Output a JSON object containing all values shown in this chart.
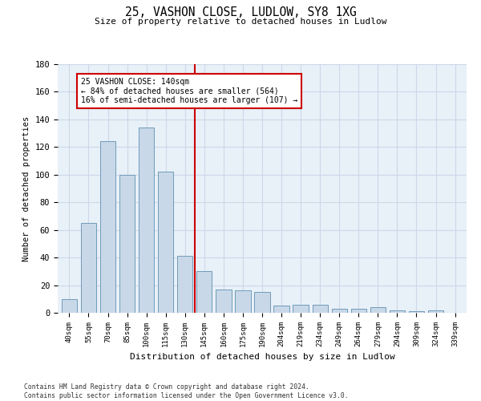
{
  "title1": "25, VASHON CLOSE, LUDLOW, SY8 1XG",
  "title2": "Size of property relative to detached houses in Ludlow",
  "xlabel": "Distribution of detached houses by size in Ludlow",
  "ylabel": "Number of detached properties",
  "categories": [
    "40sqm",
    "55sqm",
    "70sqm",
    "85sqm",
    "100sqm",
    "115sqm",
    "130sqm",
    "145sqm",
    "160sqm",
    "175sqm",
    "190sqm",
    "204sqm",
    "219sqm",
    "234sqm",
    "249sqm",
    "264sqm",
    "279sqm",
    "294sqm",
    "309sqm",
    "324sqm",
    "339sqm"
  ],
  "values": [
    10,
    65,
    124,
    100,
    134,
    102,
    41,
    30,
    17,
    16,
    15,
    5,
    6,
    6,
    3,
    3,
    4,
    2,
    1,
    2,
    0
  ],
  "bar_color": "#c8d8e8",
  "bar_edge_color": "#6090b0",
  "reference_line_bin": 7,
  "reference_line_color": "#cc0000",
  "annotation_text": "25 VASHON CLOSE: 140sqm\n← 84% of detached houses are smaller (564)\n16% of semi-detached houses are larger (107) →",
  "annotation_box_color": "#ffffff",
  "annotation_box_edge_color": "#cc0000",
  "ylim": [
    0,
    180
  ],
  "yticks": [
    0,
    20,
    40,
    60,
    80,
    100,
    120,
    140,
    160,
    180
  ],
  "grid_color": "#cdd8e8",
  "background_color": "#e8f0f8",
  "footnote": "Contains HM Land Registry data © Crown copyright and database right 2024.\nContains public sector information licensed under the Open Government Licence v3.0."
}
